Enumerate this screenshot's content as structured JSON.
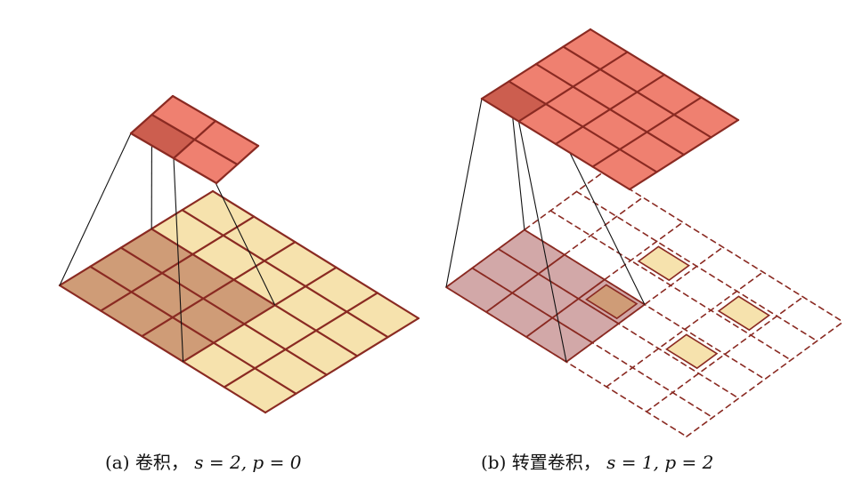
{
  "figure": {
    "colors": {
      "output": "#ef8070",
      "output_highlight": "#cc5e4f",
      "input": "#f6e2ad",
      "input_highlight": "#cf9c77",
      "kernel_overlay_b": "#d2a8a8",
      "grid_line": "#8a2a22",
      "projection_line": "#111111"
    },
    "panel_a": {
      "caption_prefix": "(a)",
      "caption_chinese": "卷积，",
      "caption_formula": "s = 2, p = 0",
      "input_grid_size": 5,
      "output_grid_size": 2,
      "kernel_size": 3,
      "stride": 2,
      "padding": 0
    },
    "panel_b": {
      "caption_prefix": "(b)",
      "caption_chinese": "转置卷积，",
      "caption_formula": "s = 1, p = 2",
      "input_grid_size": 6,
      "input_dashed_padding": true,
      "real_input_size": 2,
      "output_grid_size": 4,
      "kernel_size": 3,
      "stride": 1,
      "padding": 2
    }
  }
}
